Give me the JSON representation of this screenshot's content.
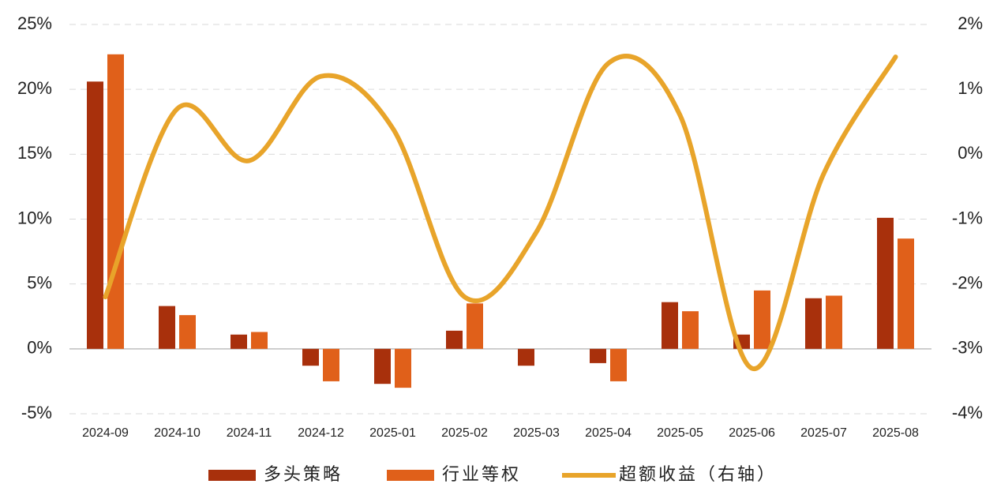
{
  "chart_data": {
    "type": "bar-line",
    "categories": [
      "2024-09",
      "2024-10",
      "2024-11",
      "2024-12",
      "2025-01",
      "2025-02",
      "2025-03",
      "2025-04",
      "2025-05",
      "2025-06",
      "2025-07",
      "2025-08"
    ],
    "series": [
      {
        "name": "多头策略",
        "color": "#a8300c",
        "type": "bar",
        "values": [
          20.6,
          3.3,
          1.1,
          -1.3,
          -2.7,
          1.4,
          -1.3,
          -1.1,
          3.6,
          1.1,
          3.9,
          10.1
        ]
      },
      {
        "name": "行业等权",
        "color": "#e0601a",
        "type": "bar",
        "values": [
          22.7,
          2.6,
          1.3,
          -2.5,
          -3.0,
          3.5,
          0,
          -2.5,
          2.9,
          4.5,
          4.1,
          8.5
        ]
      },
      {
        "name": "超额收益（右轴）",
        "color": "#e8a42a",
        "type": "line",
        "axis": "y2",
        "values": [
          -2.2,
          0.7,
          -0.1,
          1.2,
          0.4,
          -2.2,
          -1.2,
          1.4,
          0.6,
          -3.3,
          -0.3,
          1.5
        ]
      }
    ],
    "ylim": [
      -5,
      25
    ],
    "yticks": [
      {
        "value": -5,
        "label": "-5%"
      },
      {
        "value": 0,
        "label": "0%"
      },
      {
        "value": 5,
        "label": "5%"
      },
      {
        "value": 10,
        "label": "10%"
      },
      {
        "value": 15,
        "label": "15%"
      },
      {
        "value": 20,
        "label": "20%"
      },
      {
        "value": 25,
        "label": "25%"
      }
    ],
    "y2lim": [
      -4,
      2
    ],
    "y2ticks": [
      {
        "value": -4,
        "label": "-4%"
      },
      {
        "value": -3,
        "label": "-3%"
      },
      {
        "value": -2,
        "label": "-2%"
      },
      {
        "value": -1,
        "label": "-1%"
      },
      {
        "value": 0,
        "label": "0%"
      },
      {
        "value": 1,
        "label": "1%"
      },
      {
        "value": 2,
        "label": "2%"
      }
    ],
    "grid": true,
    "legend": "bottom"
  }
}
